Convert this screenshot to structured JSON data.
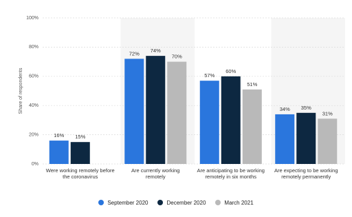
{
  "chart_data": {
    "type": "bar",
    "y_label": "Share of respondents",
    "categories": [
      "Were working remotely before the coronavirus",
      "Are currently working remotely",
      "Are anticipating to be working remotely in six months",
      "Are expecting to be working remotely permanently"
    ],
    "series": [
      {
        "name": "September 2020",
        "color": "#2a76dd",
        "values": [
          16,
          72,
          57,
          34
        ],
        "value_labels": [
          "16%",
          "72%",
          "57%",
          "34%"
        ]
      },
      {
        "name": "December 2020",
        "color": "#0d2841",
        "values": [
          15,
          74,
          60,
          35
        ],
        "value_labels": [
          "15%",
          "74%",
          "60%",
          "35%"
        ]
      },
      {
        "name": "March 2021",
        "color": "#b9b9b9",
        "values": [
          null,
          70,
          51,
          31
        ],
        "value_labels": [
          null,
          "70%",
          "51%",
          "31%"
        ]
      }
    ],
    "ylim": [
      0,
      100
    ],
    "yticks": [
      {
        "value": 0,
        "label": "0%"
      },
      {
        "value": 20,
        "label": "20%"
      },
      {
        "value": 40,
        "label": "40%"
      },
      {
        "value": 60,
        "label": "60%"
      },
      {
        "value": 80,
        "label": "80%"
      },
      {
        "value": 100,
        "label": "100%"
      }
    ],
    "grid": true
  }
}
